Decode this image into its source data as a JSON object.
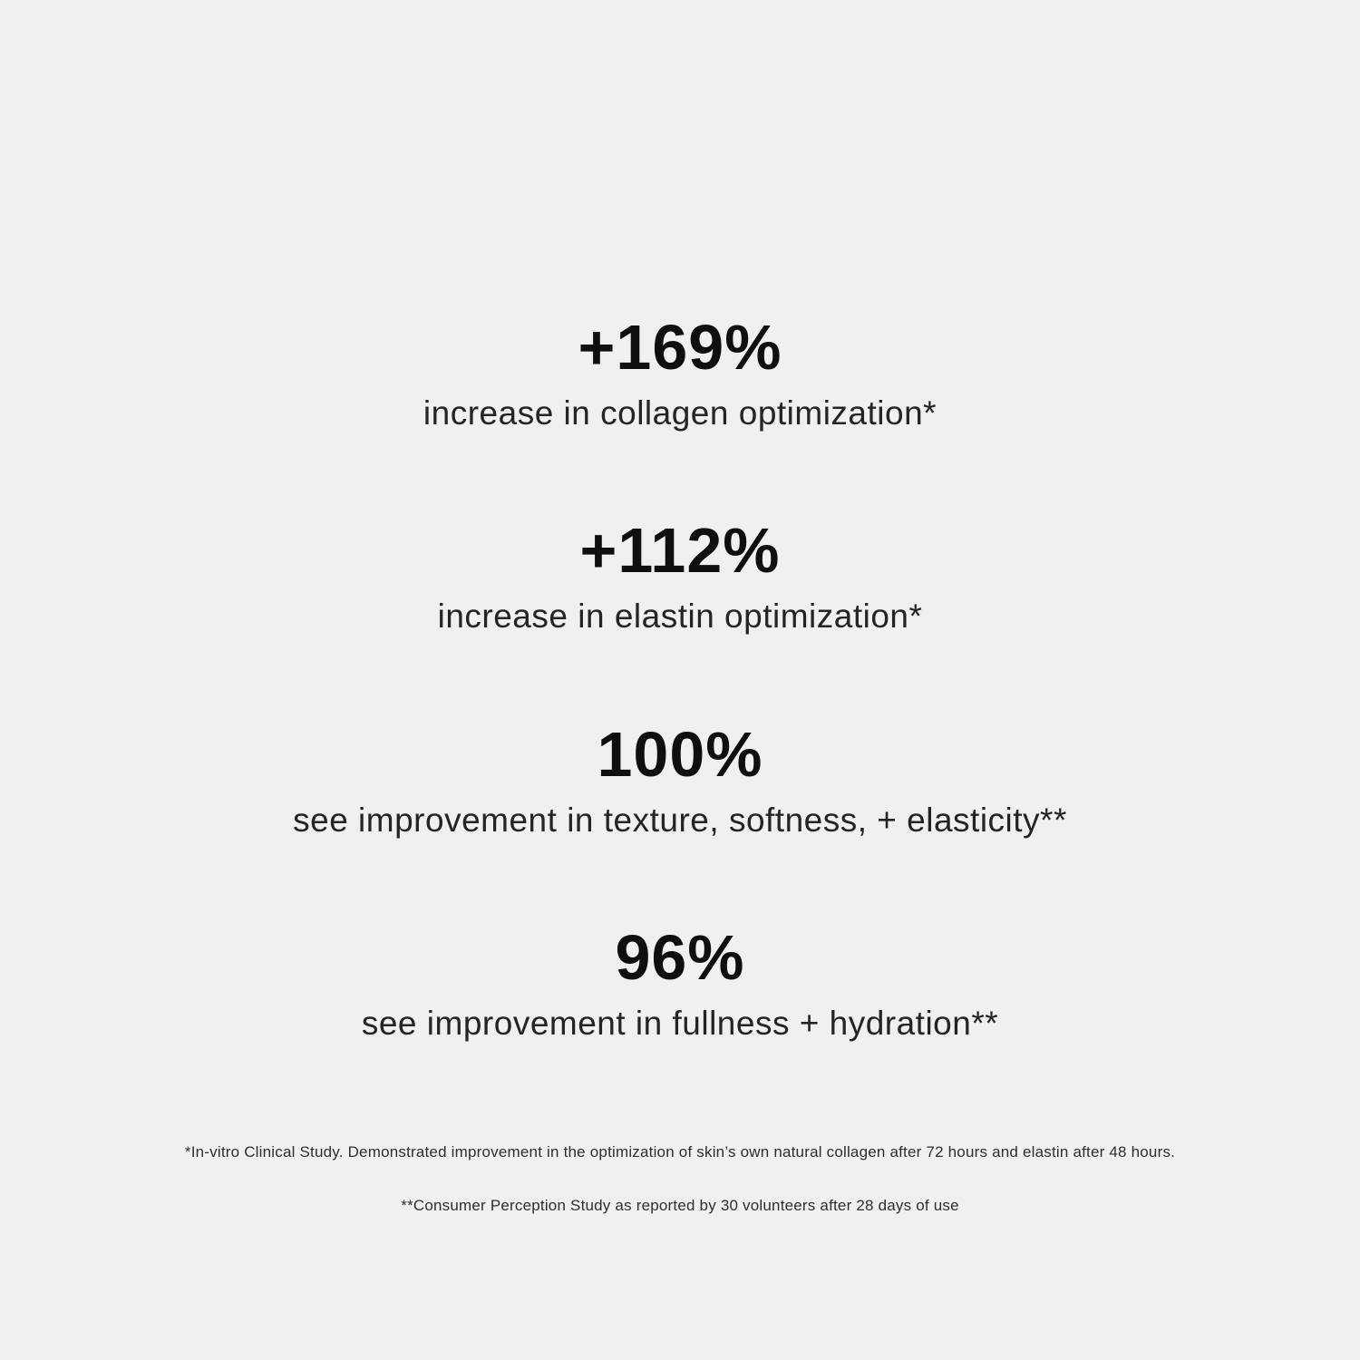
{
  "page": {
    "background_color": "#f0f0f2",
    "text_color": "#0f0f0f"
  },
  "stats": [
    {
      "value": "+169%",
      "label": "increase in collagen optimization*"
    },
    {
      "value": "+112%",
      "label": "increase in elastin optimization*"
    },
    {
      "value": "100%",
      "label": "see improvement in texture, softness, + elasticity**"
    },
    {
      "value": "96%",
      "label": "see improvement in fullness + hydration**"
    }
  ],
  "footnotes": [
    "*In-vitro Clinical Study. Demonstrated improvement in the optimization of skin’s own natural collagen after 72 hours and elastin after 48 hours.",
    "**Consumer Perception Study as reported by 30 volunteers after 28 days of use"
  ]
}
